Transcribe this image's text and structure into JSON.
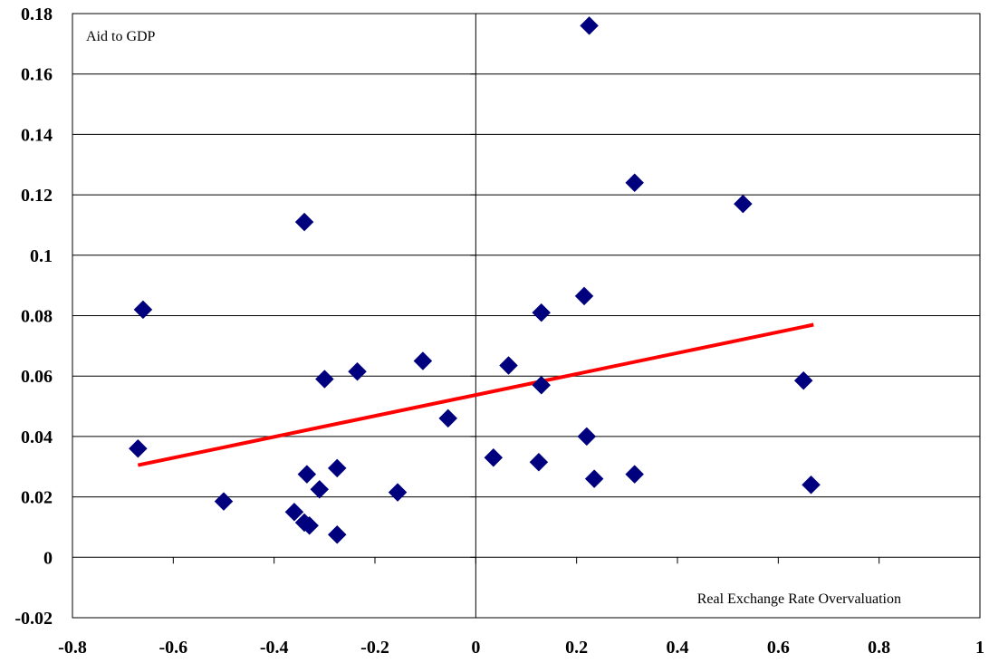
{
  "chart_data": {
    "type": "scatter",
    "title": "",
    "xlabel": "",
    "ylabel": "",
    "xlim": [
      -0.8,
      1
    ],
    "ylim": [
      -0.02,
      0.18
    ],
    "x_ticks": [
      "-0.8",
      "-0.6",
      "-0.4",
      "-0.2",
      "0",
      "0.2",
      "0.4",
      "0.6",
      "0.8",
      "1"
    ],
    "y_ticks": [
      "0.18",
      "0.16",
      "0.14",
      "0.12",
      "0.1",
      "0.08",
      "0.06",
      "0.04",
      "0.02",
      "0",
      "-0.02"
    ],
    "grid": {
      "horizontal": true,
      "vertical": false
    },
    "annotations": {
      "y_variable": "Aid to GDP",
      "x_variable": "Real Exchange Rate Overvaluation"
    },
    "series": [
      {
        "marker": "diamond",
        "color": "#00007f",
        "points": [
          [
            -0.67,
            0.036
          ],
          [
            -0.66,
            0.082
          ],
          [
            -0.5,
            0.0185
          ],
          [
            -0.36,
            0.015
          ],
          [
            -0.34,
            0.111
          ],
          [
            -0.335,
            0.0275
          ],
          [
            -0.34,
            0.0115
          ],
          [
            -0.33,
            0.0105
          ],
          [
            -0.31,
            0.0225
          ],
          [
            -0.3,
            0.059
          ],
          [
            -0.275,
            0.0295
          ],
          [
            -0.275,
            0.0075
          ],
          [
            -0.235,
            0.0615
          ],
          [
            -0.155,
            0.0215
          ],
          [
            -0.105,
            0.065
          ],
          [
            -0.055,
            0.046
          ],
          [
            0.035,
            0.033
          ],
          [
            0.065,
            0.0635
          ],
          [
            0.125,
            0.0315
          ],
          [
            0.13,
            0.081
          ],
          [
            0.13,
            0.057
          ],
          [
            0.215,
            0.0865
          ],
          [
            0.22,
            0.04
          ],
          [
            0.225,
            0.176
          ],
          [
            0.235,
            0.026
          ],
          [
            0.315,
            0.124
          ],
          [
            0.315,
            0.0275
          ],
          [
            0.53,
            0.117
          ],
          [
            0.65,
            0.0585
          ],
          [
            0.665,
            0.024
          ]
        ]
      }
    ],
    "trendline": {
      "color": "#ff0000",
      "from": [
        -0.67,
        0.0305
      ],
      "to": [
        0.67,
        0.077
      ]
    }
  }
}
